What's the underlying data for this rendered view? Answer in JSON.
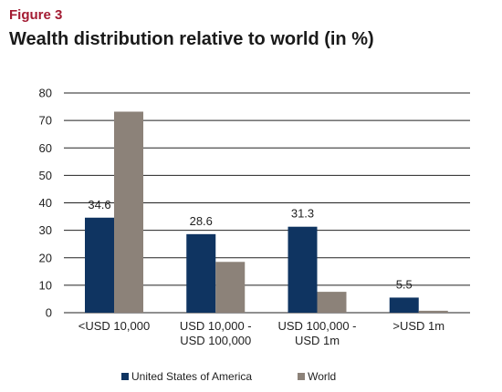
{
  "figure_label": "Figure 3",
  "title": "Wealth distribution relative to world (in %)",
  "colors": {
    "usa": "#0f3461",
    "world": "#8c8279",
    "grid": "#222222"
  },
  "chart_data": {
    "type": "bar",
    "title": "Wealth distribution relative to world (in %)",
    "categories": [
      [
        "<USD 10,000"
      ],
      [
        "USD 10,000 -",
        "USD 100,000"
      ],
      [
        "USD 100,000 -",
        "USD 1m"
      ],
      [
        ">USD 1m"
      ]
    ],
    "series": [
      {
        "name": "United States of America",
        "values": [
          34.6,
          28.6,
          31.3,
          5.5
        ],
        "labels": [
          "34.6",
          "28.6",
          "31.3",
          "5.5"
        ]
      },
      {
        "name": "World",
        "values": [
          73.2,
          18.5,
          7.6,
          0.7
        ]
      }
    ],
    "ylim": [
      0,
      80
    ],
    "yticks": [
      0,
      10,
      20,
      30,
      40,
      50,
      60,
      70,
      80
    ],
    "grid": true,
    "legend": "bottom"
  }
}
